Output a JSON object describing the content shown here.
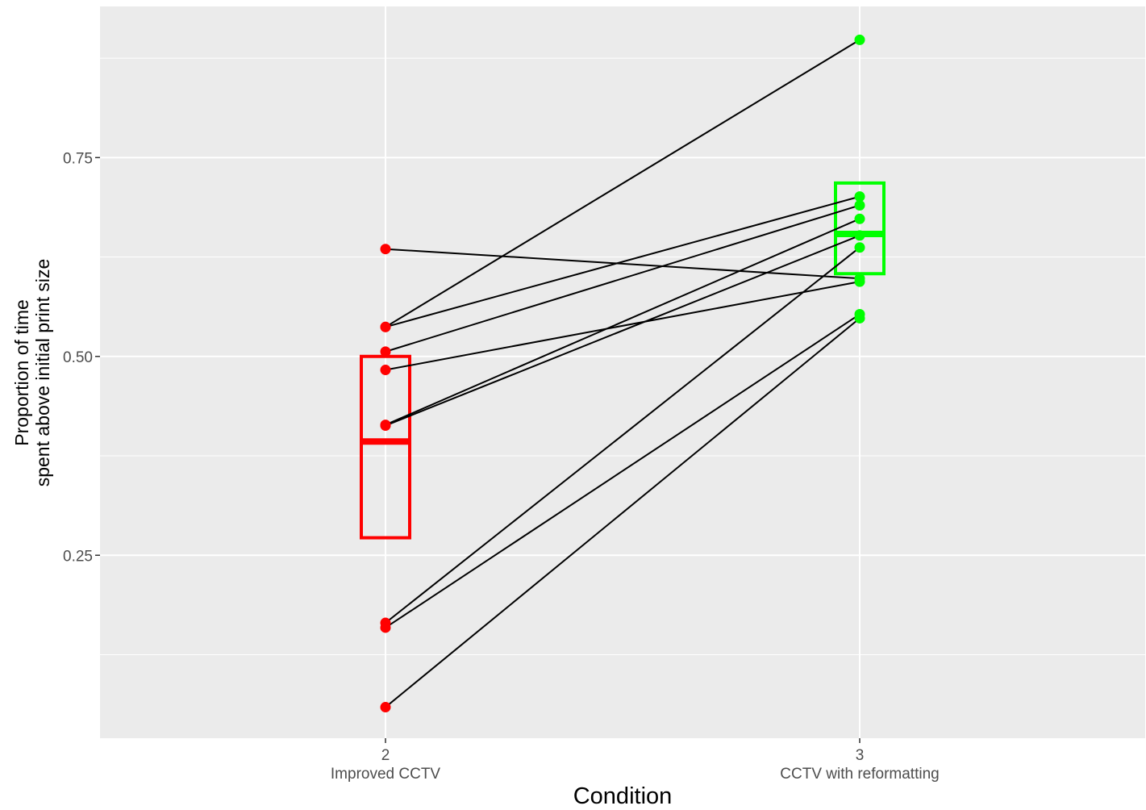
{
  "chart_data": {
    "type": "line",
    "title": "",
    "xlabel": "Condition",
    "ylabel_lines": [
      "Proportion of time",
      "spent above initial print size"
    ],
    "ylim": [
      0.02,
      0.94
    ],
    "y_ticks": [
      0.25,
      0.5,
      0.75
    ],
    "y_tick_labels": [
      "0.25",
      "0.50",
      "0.75"
    ],
    "grid": true,
    "categories": [
      {
        "code": "2",
        "name": "Improved CCTV",
        "color": "#ff0000"
      },
      {
        "code": "3",
        "name": "CCTV with reformatting",
        "color": "#00ff00"
      }
    ],
    "boxes": [
      {
        "category": "2",
        "lower": 0.272,
        "median": 0.393,
        "upper": 0.5
      },
      {
        "category": "3",
        "lower": 0.604,
        "median": 0.654,
        "upper": 0.718
      }
    ],
    "pairs": [
      [
        0.635,
        0.598
      ],
      [
        0.537,
        0.898
      ],
      [
        0.537,
        0.701
      ],
      [
        0.506,
        0.69
      ],
      [
        0.483,
        0.594
      ],
      [
        0.414,
        0.673
      ],
      [
        0.413,
        0.652
      ],
      [
        0.165,
        0.637
      ],
      [
        0.159,
        0.553
      ],
      [
        0.059,
        0.548
      ]
    ],
    "colors": {
      "panel": "#ebebeb",
      "grid_major": "#ffffff",
      "line": "#000000",
      "condition_2": "#ff0000",
      "condition_3": "#00ff00"
    }
  }
}
